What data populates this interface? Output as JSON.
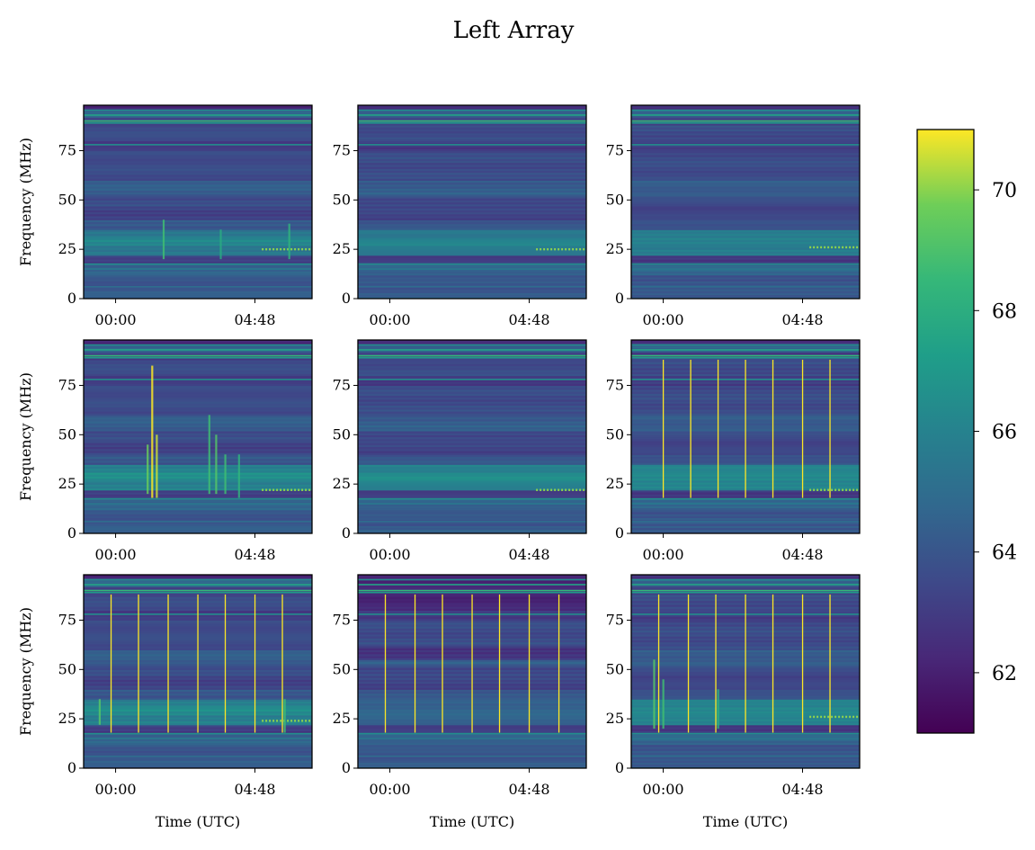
{
  "figure": {
    "title": "Left Array",
    "colormap": "viridis"
  },
  "chart_data": {
    "type": "heatmap",
    "title": "Left Array",
    "layout": "3x3 grid of spectrograms with shared colorbar",
    "xlabel": "Time (UTC)",
    "ylabel": "Frequency (MHz)",
    "xticks": [
      "00:00",
      "04:48"
    ],
    "yticks": [
      0,
      25,
      50,
      75
    ],
    "ylim": [
      0,
      98
    ],
    "colorbar": {
      "ticks": [
        62,
        64,
        66,
        68,
        70
      ],
      "range": [
        61,
        71
      ],
      "cmap": "viridis"
    },
    "panels": [
      {
        "row": 1,
        "col": 1,
        "spikes_min": [],
        "dotted_band_mhz": 25,
        "burst": [
          [
            0.35,
            20,
            40,
            0.5
          ],
          [
            0.6,
            20,
            35,
            0.3
          ],
          [
            0.9,
            20,
            38,
            0.4
          ]
        ]
      },
      {
        "row": 1,
        "col": 2,
        "spikes_min": [],
        "dotted_band_mhz": 25,
        "burst": []
      },
      {
        "row": 1,
        "col": 3,
        "spikes_min": [],
        "dotted_band_mhz": 26,
        "burst": []
      },
      {
        "row": 2,
        "col": 1,
        "spikes_min": [],
        "dotted_band_mhz": 22,
        "burst": [
          [
            0.3,
            18,
            85,
            1.0
          ],
          [
            0.32,
            18,
            50,
            0.9
          ],
          [
            0.28,
            20,
            45,
            0.7
          ],
          [
            0.55,
            20,
            60,
            0.5
          ],
          [
            0.58,
            20,
            50,
            0.6
          ],
          [
            0.62,
            20,
            40,
            0.5
          ],
          [
            0.68,
            18,
            40,
            0.4
          ]
        ]
      },
      {
        "row": 2,
        "col": 2,
        "spikes_min": [],
        "dotted_band_mhz": 22,
        "burst": []
      },
      {
        "row": 2,
        "col": 3,
        "spikes_min": [
          0.14,
          0.26,
          0.38,
          0.5,
          0.62,
          0.75,
          0.87
        ],
        "dotted_band_mhz": 22,
        "burst": []
      },
      {
        "row": 3,
        "col": 1,
        "spikes_min": [
          0.12,
          0.24,
          0.37,
          0.5,
          0.62,
          0.75,
          0.87
        ],
        "dotted_band_mhz": 24,
        "burst": [
          [
            0.07,
            22,
            35,
            0.6
          ],
          [
            0.88,
            18,
            35,
            0.5
          ]
        ]
      },
      {
        "row": 3,
        "col": 2,
        "spikes_min": [
          0.12,
          0.25,
          0.37,
          0.5,
          0.62,
          0.75,
          0.88
        ],
        "dotted_band_mhz": null,
        "burst": []
      },
      {
        "row": 3,
        "col": 3,
        "spikes_min": [
          0.12,
          0.25,
          0.37,
          0.5,
          0.62,
          0.75,
          0.87
        ],
        "dotted_band_mhz": 26,
        "burst": [
          [
            0.1,
            20,
            55,
            0.6
          ],
          [
            0.14,
            20,
            45,
            0.5
          ],
          [
            0.38,
            20,
            40,
            0.4
          ]
        ]
      }
    ]
  }
}
